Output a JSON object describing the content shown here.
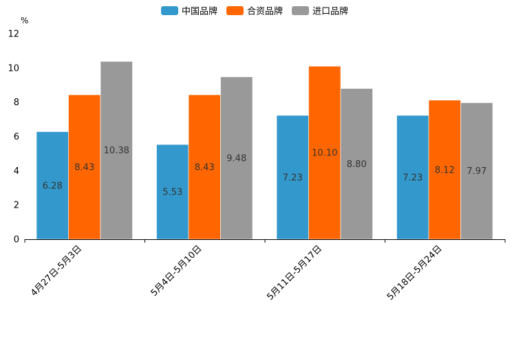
{
  "chart_data": {
    "type": "bar",
    "title": "",
    "ylabel": "%",
    "xlabel": "",
    "ylim": [
      0,
      12
    ],
    "yticks": [
      0,
      2,
      4,
      6,
      8,
      10,
      12
    ],
    "legend_position": "top-center",
    "categories": [
      "4月27日-5月3日",
      "5月4日-5月10日",
      "5月11日-5月17日",
      "5月18日-5月24日"
    ],
    "series": [
      {
        "name": "中国品牌",
        "color": "#3399cc",
        "values": [
          6.28,
          5.53,
          7.23,
          7.23
        ],
        "labels": [
          "6.28",
          "5.53",
          "7.23",
          "7.23"
        ]
      },
      {
        "name": "合资品牌",
        "color": "#ff6600",
        "values": [
          8.43,
          8.43,
          10.1,
          8.12
        ],
        "labels": [
          "8.43",
          "8.43",
          "10.10",
          "8.12"
        ]
      },
      {
        "name": "进口品牌",
        "color": "#999999",
        "values": [
          10.38,
          9.48,
          8.8,
          7.97
        ],
        "labels": [
          "10.38",
          "9.48",
          "8.80",
          "7.97"
        ]
      }
    ]
  }
}
